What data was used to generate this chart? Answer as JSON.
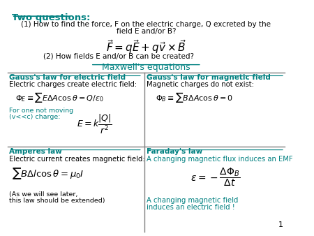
{
  "bg_color": "#ffffff",
  "teal": "#008080",
  "black": "#000000",
  "title": "Two questions:",
  "q1a": "(1) How to find the force, F on the electric charge, Q excreted by the",
  "q1b": "field E and/or B?",
  "q2": "(2) How fields E and/or B can be created?",
  "maxwell": "Maxwell's equations",
  "gauss_e_title": "Gauss's law for electric field",
  "gauss_e_sub": "Electric charges create electric field:",
  "gauss_b_title": "Gauss's law for magnetic field",
  "gauss_b_sub": "Magnetic charges do not exist:",
  "ampere_title": "Amperes law",
  "ampere_sub": "Electric current creates magnetic field:",
  "ampere_note1": "(As we will see later,",
  "ampere_note2": "this law should be extended)",
  "faraday_title": "Faraday's law",
  "faraday_sub": "A changing magnetic flux induces an EMF",
  "faraday_note1": "A changing magnetic field",
  "faraday_note2": "induces an electric field !",
  "page_num": "1"
}
